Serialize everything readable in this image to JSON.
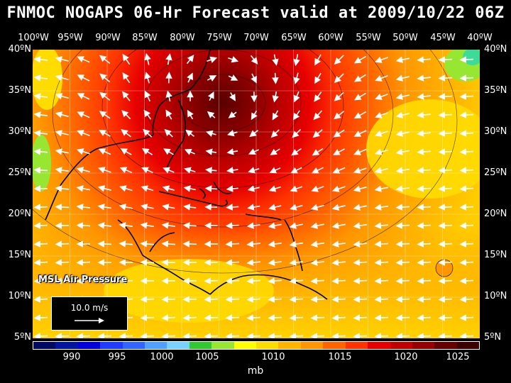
{
  "title": "FNMOC NOGAPS 06-Hr Forecast valid at 2009/10/22 06Z",
  "map_label": "MSL Air Pressure",
  "reference_vector": "10.0 m/s",
  "units": "mb",
  "longitudes": [
    "100ºW",
    "95ºW",
    "90ºW",
    "85ºW",
    "80ºW",
    "75ºW",
    "70ºW",
    "65ºW",
    "60ºW",
    "55ºW",
    "50ºW",
    "45ºW",
    "40ºW"
  ],
  "latitudes": [
    "40ºN",
    "35ºN",
    "30ºN",
    "25ºN",
    "20ºN",
    "15ºN",
    "10ºN",
    "5ºN"
  ],
  "colorbar": {
    "colors": [
      "#000a64",
      "#0014a0",
      "#0000dc",
      "#1e3cff",
      "#3264ff",
      "#50a0ff",
      "#78d2ff",
      "#32c832",
      "#96e632",
      "#ffff00",
      "#ffdc00",
      "#ffb400",
      "#ff9600",
      "#ff6400",
      "#ff3200",
      "#e60000",
      "#be0000",
      "#960000",
      "#640000",
      "#3c0000"
    ],
    "labels": [
      "990",
      "995",
      "1000",
      "1005",
      "1010",
      "1015",
      "1020",
      "1025"
    ]
  },
  "legend_colors": {
    "land_outline": "#000000",
    "wind_arrow": "#ffffff"
  }
}
